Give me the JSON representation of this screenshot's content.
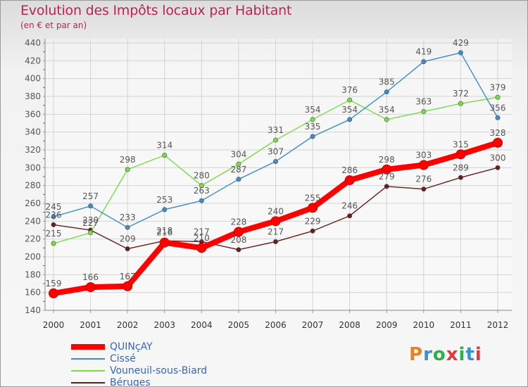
{
  "chart_data": {
    "type": "line",
    "title": "Evolution des Impôts locaux par Habitant",
    "subtitle": "(en € et par an)",
    "xlabel": "",
    "ylabel": "",
    "x": [
      2000,
      2001,
      2002,
      2003,
      2004,
      2005,
      2006,
      2007,
      2008,
      2009,
      2010,
      2011,
      2012
    ],
    "ylim": [
      140,
      440
    ],
    "yticks": [
      140,
      160,
      180,
      200,
      220,
      240,
      260,
      280,
      300,
      320,
      340,
      360,
      380,
      400,
      420,
      440
    ],
    "grid": true,
    "legend_position": "bottom-left",
    "series": [
      {
        "name": "QUINçAY",
        "color": "#ff0000",
        "values": [
          159,
          166,
          167,
          216,
          210,
          228,
          240,
          255,
          286,
          298,
          303,
          315,
          328
        ]
      },
      {
        "name": "Cissé",
        "color": "#3d8ccc",
        "values": [
          245,
          257,
          233,
          253,
          263,
          287,
          307,
          335,
          354,
          385,
          419,
          429,
          356
        ]
      },
      {
        "name": "Vouneuil-sous-Biard",
        "color": "#77dd44",
        "values": [
          215,
          227,
          298,
          314,
          280,
          304,
          331,
          354,
          376,
          354,
          363,
          372,
          379
        ]
      },
      {
        "name": "Béruges",
        "color": "#6a1c1c",
        "values": [
          236,
          230,
          209,
          218,
          217,
          208,
          217,
          229,
          246,
          279,
          276,
          289,
          300
        ]
      }
    ]
  },
  "logo": {
    "text": "Proxiti",
    "colors": [
      "#e8821e",
      "#3a8fd4",
      "#2fae4e",
      "#e03a3a"
    ]
  }
}
